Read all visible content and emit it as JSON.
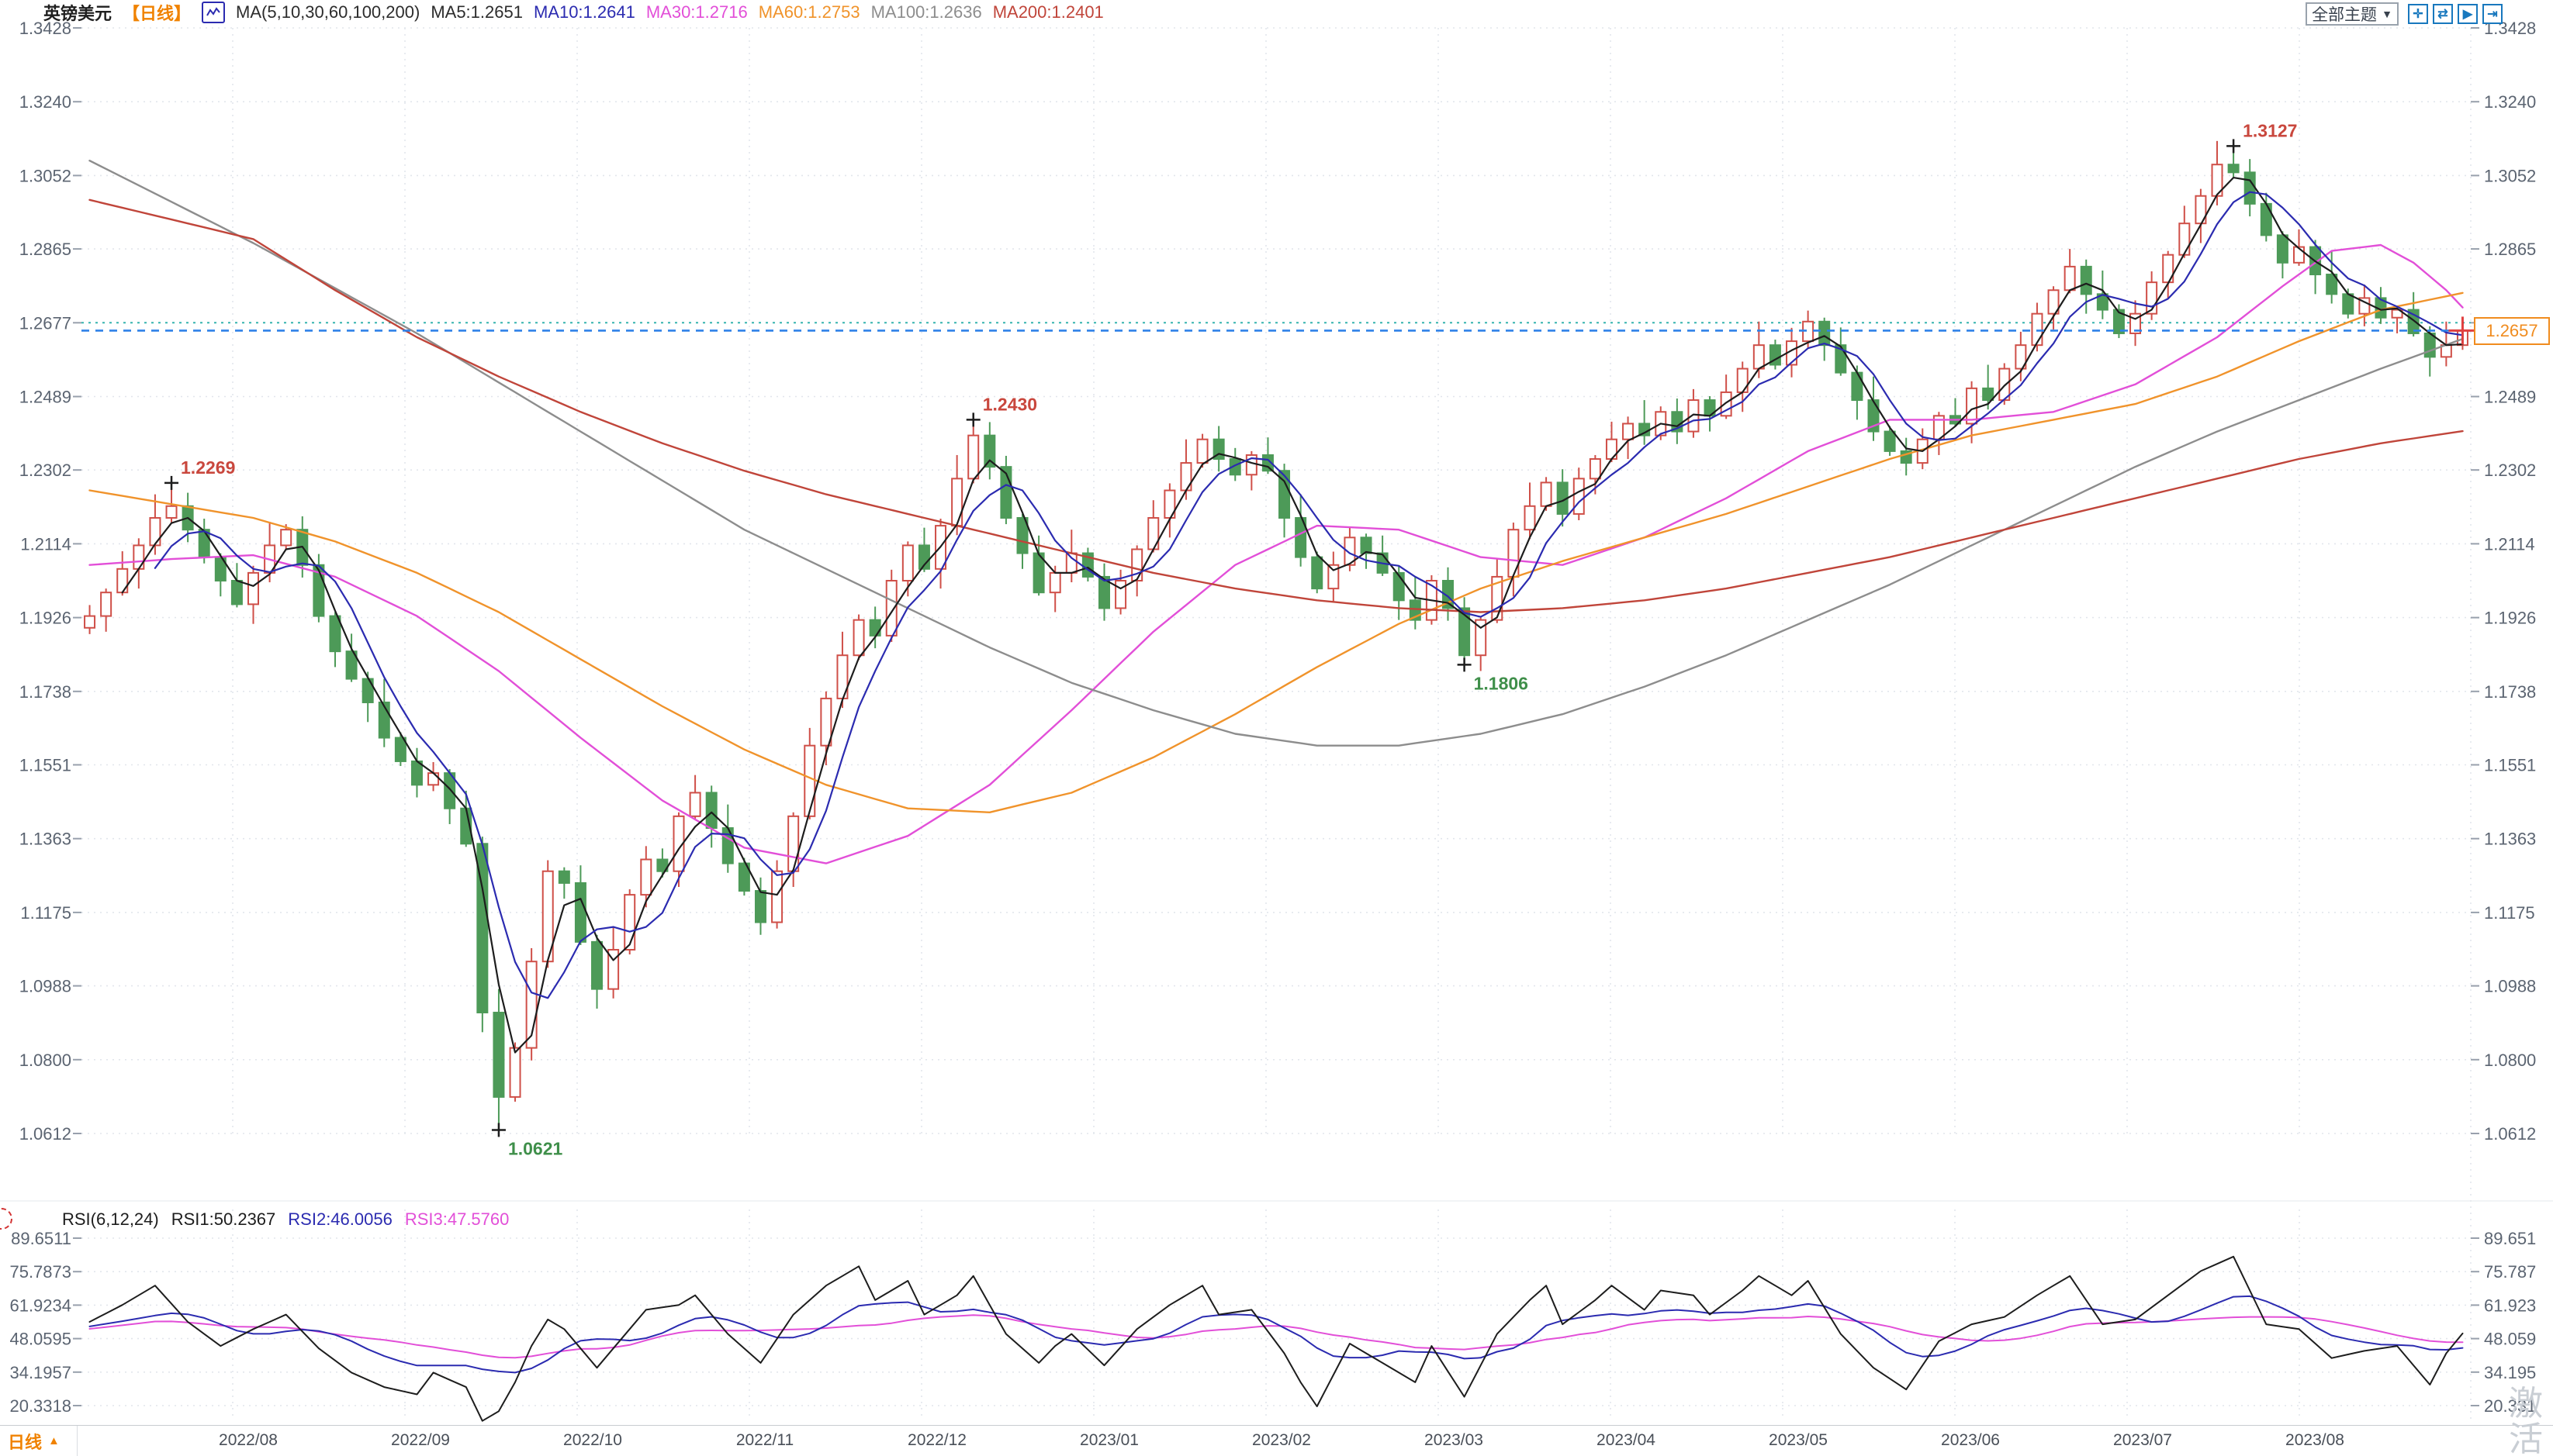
{
  "header": {
    "symbol": "英镑美元",
    "period_tag": "【日线】",
    "ma_group_label": "MA(5,10,30,60,100,200)",
    "ma_values": [
      {
        "label": "MA5:1.2651",
        "color": "#2c2c2c"
      },
      {
        "label": "MA10:1.2641",
        "color": "#2b2bb0"
      },
      {
        "label": "MA30:1.2716",
        "color": "#e24fd8"
      },
      {
        "label": "MA60:1.2753",
        "color": "#f0932b"
      },
      {
        "label": "MA100:1.2636",
        "color": "#8d8d8d"
      },
      {
        "label": "MA200:1.2401",
        "color": "#c0453a"
      }
    ]
  },
  "toolbar": {
    "theme_dropdown": "全部主题",
    "dropdown_arrow": "▼",
    "icons": [
      {
        "name": "move-crosshair-icon",
        "glyph": "✛"
      },
      {
        "name": "fit-range-icon",
        "glyph": "⇄"
      },
      {
        "name": "playback-icon",
        "glyph": "▶"
      },
      {
        "name": "export-icon",
        "glyph": "⇥"
      }
    ]
  },
  "rsi_header": {
    "group": "RSI(6,12,24)",
    "rsi1": {
      "label": "RSI1:50.2367",
      "color": "#1d1d1d"
    },
    "rsi2": {
      "label": "RSI2:46.0056",
      "color": "#2b2bb0"
    },
    "rsi3": {
      "label": "RSI3:47.5760",
      "color": "#e24fd8"
    }
  },
  "x_axis": {
    "period_label": "日线",
    "period_arrow": "▲",
    "labels": [
      "2022/08",
      "2022/09",
      "2022/10",
      "2022/11",
      "2022/12",
      "2023/01",
      "2023/02",
      "2023/03",
      "2023/04",
      "2023/05",
      "2023/06",
      "2023/07",
      "2023/08"
    ]
  },
  "price_tag": {
    "value": "1.2657",
    "color": "#f08c1f"
  },
  "watermark": {
    "char1": "激",
    "char2": "活"
  },
  "chart_data": {
    "type": "candlestick+rsi",
    "title": "英镑美元 日线 (GBP/USD daily, 2022/08 - 2023/08)",
    "price_axis_values": [
      1.3428,
      1.324,
      1.3052,
      1.2865,
      1.2677,
      1.2489,
      1.2302,
      1.2114,
      1.1926,
      1.1738,
      1.1551,
      1.1363,
      1.1175,
      1.0988,
      1.08,
      1.0612
    ],
    "price_axis_labels": [
      "1.3428",
      "1.3240",
      "1.3052",
      "1.2865",
      "1.2677",
      "1.2489",
      "1.2302",
      "1.2114",
      "1.1926",
      "1.1738",
      "1.1551",
      "1.1363",
      "1.1175",
      "1.0988",
      "1.0800",
      "1.0612"
    ],
    "rsi_axis_values": [
      89.6511,
      75.7873,
      61.9234,
      48.0595,
      34.1957,
      20.3318
    ],
    "rsi_axis_labels_left": [
      "89.6511",
      "75.7873",
      "61.9234",
      "48.0595",
      "34.1957",
      "20.3318"
    ],
    "rsi_axis_labels_right": [
      "89.651",
      "75.787",
      "61.923",
      "48.059",
      "34.195",
      "20.331"
    ],
    "current_price": 1.2657,
    "reference_price": 1.2677,
    "candles": {
      "first_open": 1.19,
      "closes": [
        1.193,
        1.199,
        1.205,
        1.211,
        1.218,
        1.221,
        1.215,
        1.208,
        1.202,
        1.196,
        1.204,
        1.211,
        1.215,
        1.206,
        1.193,
        1.184,
        1.177,
        1.171,
        1.162,
        1.156,
        1.15,
        1.153,
        1.144,
        1.135,
        1.092,
        1.0705,
        1.083,
        1.105,
        1.128,
        1.125,
        1.11,
        1.098,
        1.108,
        1.122,
        1.131,
        1.128,
        1.142,
        1.148,
        1.139,
        1.13,
        1.123,
        1.115,
        1.128,
        1.142,
        1.16,
        1.172,
        1.183,
        1.192,
        1.188,
        1.202,
        1.211,
        1.205,
        1.216,
        1.228,
        1.239,
        1.231,
        1.218,
        1.209,
        1.199,
        1.204,
        1.209,
        1.203,
        1.195,
        1.202,
        1.21,
        1.218,
        1.225,
        1.232,
        1.238,
        1.233,
        1.229,
        1.234,
        1.23,
        1.218,
        1.208,
        1.2,
        1.206,
        1.213,
        1.209,
        1.204,
        1.197,
        1.192,
        1.202,
        1.195,
        1.183,
        1.192,
        1.203,
        1.215,
        1.221,
        1.227,
        1.219,
        1.228,
        1.233,
        1.238,
        1.242,
        1.239,
        1.245,
        1.24,
        1.248,
        1.244,
        1.25,
        1.256,
        1.262,
        1.257,
        1.263,
        1.268,
        1.262,
        1.255,
        1.248,
        1.24,
        1.235,
        1.232,
        1.238,
        1.244,
        1.242,
        1.251,
        1.248,
        1.256,
        1.262,
        1.27,
        1.276,
        1.282,
        1.275,
        1.271,
        1.265,
        1.27,
        1.278,
        1.285,
        1.293,
        1.3,
        1.308,
        1.306,
        1.298,
        1.29,
        1.283,
        1.287,
        1.28,
        1.275,
        1.27,
        1.274,
        1.269,
        1.271,
        1.265,
        1.259,
        1.262,
        1.2657
      ],
      "wick_up_pattern": [
        0.0028,
        0.001,
        0.0045,
        0.0018,
        0.006,
        0.0014,
        0.0034
      ],
      "wick_dn_pattern": [
        0.0016,
        0.004,
        0.0008,
        0.005,
        0.0024,
        0.0012,
        0.0032
      ],
      "overrides": {
        "5": {
          "high": 1.2269
        },
        "25": {
          "low": 1.0621
        },
        "54": {
          "high": 1.243
        },
        "84": {
          "low": 1.1806
        },
        "131": {
          "high": 1.3127
        }
      },
      "up_color": "#cf4f48",
      "down_color": "#4d9a58"
    },
    "annotations": [
      {
        "index": 5,
        "price": 1.2269,
        "text": "1.2269",
        "color": "#c9473d",
        "side": "above"
      },
      {
        "index": 25,
        "price": 1.0621,
        "text": "1.0621",
        "color": "#3f8f4a",
        "side": "below"
      },
      {
        "index": 54,
        "price": 1.243,
        "text": "1.2430",
        "color": "#c9473d",
        "side": "above"
      },
      {
        "index": 84,
        "price": 1.1806,
        "text": "1.1806",
        "color": "#3f8f4a",
        "side": "below"
      },
      {
        "index": 131,
        "price": 1.3127,
        "text": "1.3127",
        "color": "#c9473d",
        "side": "above"
      }
    ],
    "ma_derived": [
      {
        "name": "MA5",
        "period": 3,
        "color": "#1d1d1d"
      },
      {
        "name": "MA10",
        "period": 5,
        "color": "#2b2bb0"
      }
    ],
    "ma_overlays": [
      {
        "name": "MA30",
        "color": "#e24fd8",
        "points": [
          [
            0,
            1.206
          ],
          [
            5,
            1.2075
          ],
          [
            10,
            1.2085
          ],
          [
            15,
            1.203
          ],
          [
            20,
            1.193
          ],
          [
            25,
            1.179
          ],
          [
            30,
            1.162
          ],
          [
            35,
            1.146
          ],
          [
            40,
            1.134
          ],
          [
            45,
            1.13
          ],
          [
            50,
            1.137
          ],
          [
            55,
            1.15
          ],
          [
            60,
            1.169
          ],
          [
            65,
            1.189
          ],
          [
            70,
            1.206
          ],
          [
            75,
            1.216
          ],
          [
            80,
            1.215
          ],
          [
            85,
            1.208
          ],
          [
            90,
            1.206
          ],
          [
            95,
            1.213
          ],
          [
            100,
            1.223
          ],
          [
            105,
            1.235
          ],
          [
            110,
            1.243
          ],
          [
            115,
            1.243
          ],
          [
            120,
            1.245
          ],
          [
            125,
            1.252
          ],
          [
            130,
            1.264
          ],
          [
            134,
            1.277
          ],
          [
            137,
            1.286
          ],
          [
            140,
            1.2875
          ],
          [
            142,
            1.283
          ],
          [
            144,
            1.276
          ],
          [
            145,
            1.2716
          ]
        ]
      },
      {
        "name": "MA60",
        "color": "#f0932b",
        "points": [
          [
            0,
            1.225
          ],
          [
            5,
            1.2215
          ],
          [
            10,
            1.218
          ],
          [
            15,
            1.212
          ],
          [
            20,
            1.204
          ],
          [
            25,
            1.194
          ],
          [
            30,
            1.182
          ],
          [
            35,
            1.17
          ],
          [
            40,
            1.159
          ],
          [
            45,
            1.15
          ],
          [
            50,
            1.144
          ],
          [
            55,
            1.143
          ],
          [
            60,
            1.148
          ],
          [
            65,
            1.157
          ],
          [
            70,
            1.168
          ],
          [
            75,
            1.18
          ],
          [
            80,
            1.191
          ],
          [
            85,
            1.2
          ],
          [
            90,
            1.207
          ],
          [
            95,
            1.213
          ],
          [
            100,
            1.219
          ],
          [
            105,
            1.226
          ],
          [
            110,
            1.233
          ],
          [
            115,
            1.239
          ],
          [
            120,
            1.243
          ],
          [
            125,
            1.247
          ],
          [
            130,
            1.254
          ],
          [
            135,
            1.263
          ],
          [
            140,
            1.271
          ],
          [
            145,
            1.2753
          ]
        ]
      },
      {
        "name": "MA100",
        "color": "#8d8d8d",
        "points": [
          [
            0,
            1.309
          ],
          [
            10,
            1.288
          ],
          [
            20,
            1.265
          ],
          [
            30,
            1.24
          ],
          [
            40,
            1.215
          ],
          [
            50,
            1.195
          ],
          [
            55,
            1.185
          ],
          [
            60,
            1.176
          ],
          [
            65,
            1.169
          ],
          [
            70,
            1.163
          ],
          [
            75,
            1.16
          ],
          [
            80,
            1.16
          ],
          [
            85,
            1.163
          ],
          [
            90,
            1.168
          ],
          [
            95,
            1.175
          ],
          [
            100,
            1.183
          ],
          [
            105,
            1.192
          ],
          [
            110,
            1.201
          ],
          [
            115,
            1.211
          ],
          [
            120,
            1.221
          ],
          [
            125,
            1.231
          ],
          [
            130,
            1.24
          ],
          [
            135,
            1.248
          ],
          [
            140,
            1.256
          ],
          [
            145,
            1.2636
          ]
        ]
      },
      {
        "name": "MA200",
        "color": "#c0453a",
        "points": [
          [
            0,
            1.299
          ],
          [
            10,
            1.289
          ],
          [
            15,
            1.276
          ],
          [
            20,
            1.264
          ],
          [
            25,
            1.254
          ],
          [
            30,
            1.245
          ],
          [
            35,
            1.237
          ],
          [
            40,
            1.23
          ],
          [
            45,
            1.224
          ],
          [
            50,
            1.219
          ],
          [
            55,
            1.214
          ],
          [
            60,
            1.209
          ],
          [
            65,
            1.204
          ],
          [
            70,
            1.2
          ],
          [
            75,
            1.197
          ],
          [
            80,
            1.195
          ],
          [
            85,
            1.194
          ],
          [
            90,
            1.195
          ],
          [
            95,
            1.197
          ],
          [
            100,
            1.2
          ],
          [
            105,
            1.204
          ],
          [
            110,
            1.208
          ],
          [
            115,
            1.213
          ],
          [
            120,
            1.218
          ],
          [
            125,
            1.223
          ],
          [
            130,
            1.228
          ],
          [
            135,
            1.233
          ],
          [
            140,
            1.237
          ],
          [
            145,
            1.2401
          ]
        ]
      }
    ],
    "rsi": {
      "colors": {
        "rsi1": "#1d1d1d",
        "rsi2": "#2b2bb0",
        "rsi3": "#e24fd8"
      },
      "rsi2_window": 5,
      "rsi2_damp": 0.62,
      "rsi3_window": 10,
      "rsi3_damp": 0.42,
      "rsi1_waypoints": [
        [
          0,
          55
        ],
        [
          2,
          62
        ],
        [
          4,
          70
        ],
        [
          6,
          55
        ],
        [
          8,
          45
        ],
        [
          10,
          52
        ],
        [
          12,
          58
        ],
        [
          14,
          44
        ],
        [
          16,
          34
        ],
        [
          18,
          28
        ],
        [
          20,
          25
        ],
        [
          21,
          34
        ],
        [
          23,
          28
        ],
        [
          24,
          14
        ],
        [
          25,
          18
        ],
        [
          26,
          30
        ],
        [
          27,
          45
        ],
        [
          28,
          56
        ],
        [
          29,
          52
        ],
        [
          31,
          36
        ],
        [
          33,
          52
        ],
        [
          34,
          60
        ],
        [
          36,
          62
        ],
        [
          37,
          66
        ],
        [
          39,
          50
        ],
        [
          41,
          38
        ],
        [
          43,
          58
        ],
        [
          45,
          70
        ],
        [
          47,
          78
        ],
        [
          48,
          64
        ],
        [
          50,
          72
        ],
        [
          51,
          58
        ],
        [
          53,
          66
        ],
        [
          54,
          74
        ],
        [
          56,
          50
        ],
        [
          58,
          38
        ],
        [
          59,
          45
        ],
        [
          60,
          50
        ],
        [
          62,
          37
        ],
        [
          64,
          52
        ],
        [
          66,
          62
        ],
        [
          68,
          70
        ],
        [
          69,
          58
        ],
        [
          71,
          60
        ],
        [
          73,
          42
        ],
        [
          74,
          30
        ],
        [
          75,
          20
        ],
        [
          77,
          46
        ],
        [
          79,
          38
        ],
        [
          81,
          30
        ],
        [
          82,
          45
        ],
        [
          84,
          24
        ],
        [
          86,
          50
        ],
        [
          88,
          64
        ],
        [
          89,
          70
        ],
        [
          90,
          54
        ],
        [
          92,
          64
        ],
        [
          93,
          70
        ],
        [
          95,
          60
        ],
        [
          96,
          68
        ],
        [
          98,
          66
        ],
        [
          99,
          58
        ],
        [
          101,
          68
        ],
        [
          102,
          74
        ],
        [
          104,
          66
        ],
        [
          105,
          72
        ],
        [
          107,
          50
        ],
        [
          109,
          36
        ],
        [
          111,
          27
        ],
        [
          113,
          47
        ],
        [
          115,
          54
        ],
        [
          117,
          57
        ],
        [
          119,
          66
        ],
        [
          121,
          74
        ],
        [
          123,
          54
        ],
        [
          125,
          56
        ],
        [
          127,
          66
        ],
        [
          129,
          76
        ],
        [
          131,
          82
        ],
        [
          133,
          54
        ],
        [
          135,
          52
        ],
        [
          137,
          40
        ],
        [
          139,
          43
        ],
        [
          141,
          45
        ],
        [
          143,
          29
        ],
        [
          144,
          42
        ],
        [
          145,
          50.2
        ]
      ]
    },
    "style": {
      "grid_color": "#e2e6ec",
      "axis_text_color": "#5b6471",
      "tick_color": "#98a0ac",
      "current_price_line_color": "#2f81e8",
      "reference_line_color": "#35b3ae",
      "crosshair_color": "#e04040"
    }
  }
}
